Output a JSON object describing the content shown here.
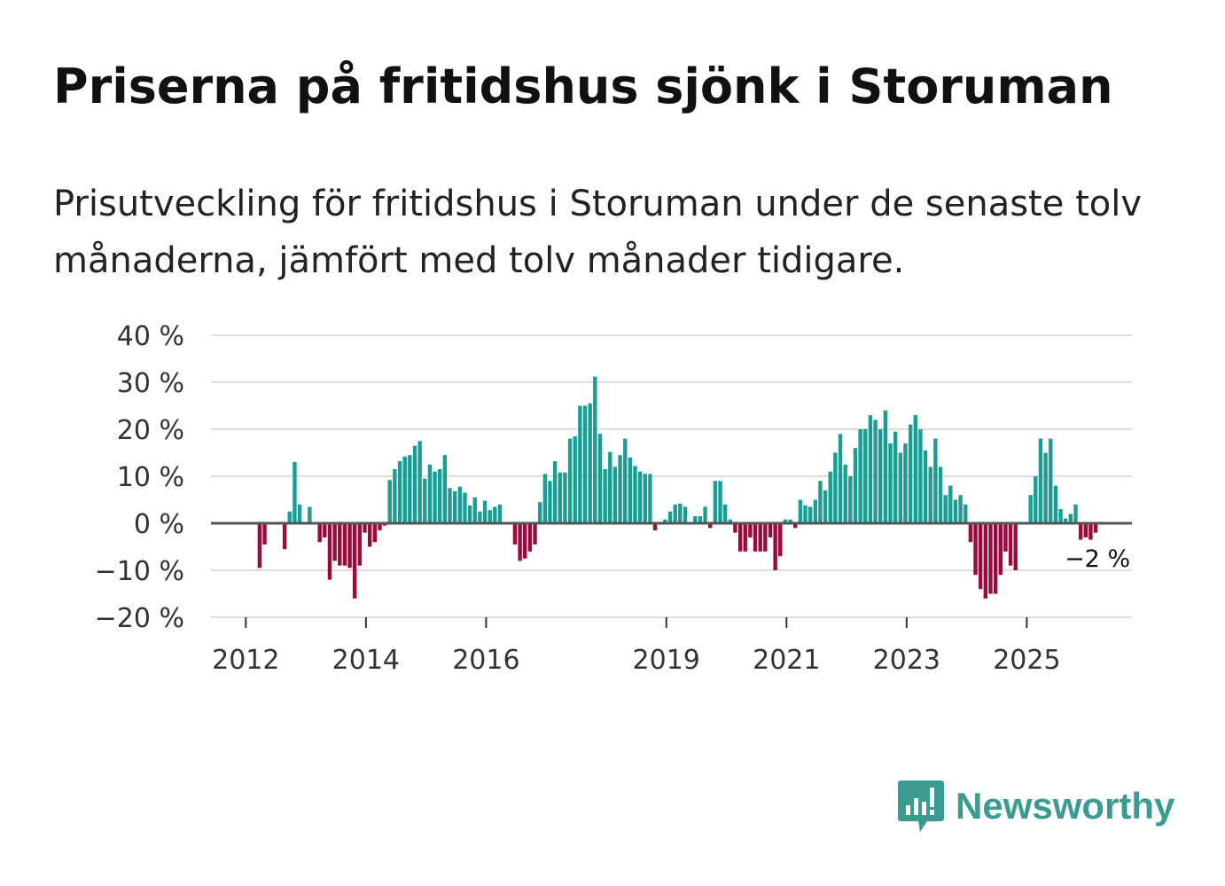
{
  "title": "Priserna på fritidshus sjönk i Storuman",
  "subtitle": "Prisutveckling för fritidshus i Storuman under de senaste tolv månaderna, jämfört med tolv månader tidigare.",
  "brand": {
    "name": "Newsworthy",
    "icon": "newsworthy-logo-icon"
  },
  "colors": {
    "positive": "#1a9e94",
    "negative": "#9b0a3d",
    "grid": "#dddddd",
    "zero_line": "#555555",
    "brand": "#3a9b91"
  },
  "chart_data": {
    "type": "bar",
    "title": "Priserna på fritidshus sjönk i Storuman",
    "xlabel": "",
    "ylabel": "",
    "ylim": [
      -20,
      40
    ],
    "yticks": [
      40,
      30,
      20,
      10,
      0,
      -10,
      -20
    ],
    "ytick_labels": [
      "40 %",
      "30 %",
      "20 %",
      "10 %",
      "0 %",
      "−10 %",
      "−20 %"
    ],
    "xtick_labels": [
      "2012",
      "2014",
      "2016",
      "2019",
      "2021",
      "2023",
      "2025"
    ],
    "xtick_positions": [
      2012.0,
      2014.0,
      2016.0,
      2019.0,
      2021.0,
      2023.0,
      2025.0
    ],
    "x_range": [
      2011.42,
      2026.75
    ],
    "start": 2011.48,
    "step": 0.08333,
    "unit": "%",
    "values": [
      0,
      0,
      0,
      0,
      0,
      0,
      0,
      0,
      0,
      -9.5,
      -4.5,
      0,
      0,
      0,
      -5.5,
      2.5,
      13,
      4,
      0,
      3.5,
      0,
      -4,
      -3,
      -12,
      -8,
      -9,
      -9,
      -9.5,
      -16,
      -9,
      -2,
      -5,
      -4,
      -1.5,
      -0.5,
      9.2,
      11.5,
      13.2,
      14.2,
      14.5,
      16.5,
      17.5,
      9.5,
      12.5,
      11,
      11.5,
      14.5,
      7.5,
      6.8,
      7.8,
      6.5,
      3.8,
      5.5,
      2.5,
      4.8,
      2.8,
      3.5,
      4,
      0,
      0,
      -4.5,
      -8,
      -7.5,
      -6,
      -4.5,
      4.5,
      10.5,
      9,
      13.2,
      10.8,
      10.8,
      18,
      18.5,
      25,
      25,
      25.5,
      31.2,
      19,
      11.5,
      15.2,
      12,
      14.5,
      18,
      14,
      12.2,
      11,
      10.5,
      10.5,
      -1.5,
      0,
      0.8,
      2.5,
      4,
      4.2,
      3.5,
      0,
      1.5,
      1.5,
      3.5,
      -1,
      9,
      9,
      4,
      0.8,
      -2,
      -6,
      -6,
      -3,
      -6,
      -6,
      -6,
      -3,
      -10,
      -7,
      0.8,
      0.8,
      -1,
      5,
      3.8,
      3.5,
      5,
      9,
      7,
      11,
      15,
      19,
      12.5,
      10,
      16,
      20,
      20,
      23,
      22,
      20,
      24,
      17,
      19.5,
      15,
      17,
      21,
      23,
      20,
      15.5,
      12,
      18,
      12,
      6,
      8,
      5,
      6,
      4,
      -4,
      -11,
      -14,
      -16,
      -15,
      -15,
      -11,
      -6,
      -9,
      -10,
      0,
      0,
      6,
      10,
      18,
      15,
      18,
      8,
      3,
      1,
      2,
      4,
      -3.5,
      -3,
      -3.5,
      -2,
      0,
      0,
      0,
      0,
      0,
      0,
      0,
      0,
      0,
      0,
      0,
      0
    ]
  },
  "annotation": {
    "text": "−2 %"
  }
}
